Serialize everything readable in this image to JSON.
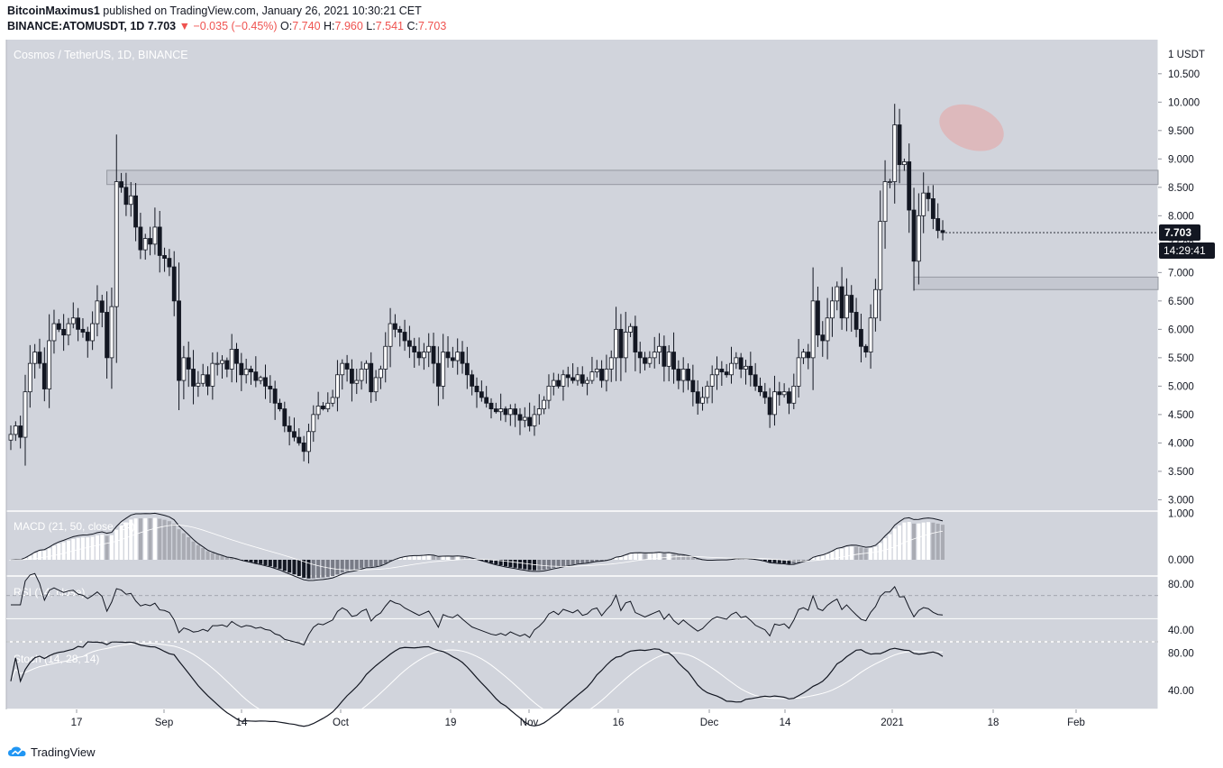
{
  "header": {
    "author": "BitcoinMaximus1",
    "published": "published on TradingView.com, January 26, 2021 10:30:21 CET",
    "symbol": "BINANCE:ATOMUSDT, 1D",
    "last": "7.703",
    "arrow": "▼",
    "change": "−0.035 (−0.45%)",
    "o_label": "O:",
    "o": "7.740",
    "h_label": "H:",
    "h": "7.960",
    "l_label": "L:",
    "l": "7.541",
    "c_label": "C:",
    "c": "7.703"
  },
  "footer": {
    "brand": "TradingView"
  },
  "colors": {
    "chart_bg": "#d1d4dc",
    "candle_up": "#ffffff",
    "candle_down": "#131722",
    "box": "#9598a1",
    "highlight": "#e8a2a2",
    "price_tag": "#131722"
  },
  "chart_data": [
    {
      "type": "candlestick",
      "title": "Cosmos / TetherUS, 1D, BINANCE",
      "currency_label": "1 USDT",
      "ylim": [
        2.8,
        11.1
      ],
      "y_ticks": [
        "10.500",
        "10.000",
        "9.500",
        "9.000",
        "8.500",
        "8.000",
        "7.500",
        "7.000",
        "6.500",
        "6.000",
        "5.500",
        "5.000",
        "4.500",
        "4.000",
        "3.500",
        "3.000"
      ],
      "x_ticks": [
        "17",
        "Sep",
        "14",
        "Oct",
        "19",
        "Nov",
        "16",
        "Dec",
        "14",
        "2021",
        "18",
        "Feb"
      ],
      "last_price": "7.703",
      "countdown": "14:29:41",
      "resistance_zone": [
        8.55,
        8.8
      ],
      "support_zone": [
        6.7,
        6.92
      ],
      "closes": [
        4.15,
        4.3,
        4.1,
        4.9,
        5.4,
        5.6,
        5.4,
        4.95,
        5.8,
        6.1,
        6.0,
        5.9,
        6.1,
        6.2,
        6.0,
        5.95,
        5.8,
        6.1,
        6.5,
        6.3,
        5.5,
        6.4,
        8.6,
        8.5,
        8.2,
        8.35,
        7.8,
        7.4,
        7.6,
        7.5,
        7.8,
        7.3,
        7.25,
        7.1,
        6.5,
        5.1,
        5.5,
        5.3,
        5.0,
        5.05,
        5.2,
        5.0,
        5.4,
        5.4,
        5.45,
        5.3,
        5.65,
        5.4,
        5.2,
        5.3,
        5.25,
        5.1,
        5.15,
        5.0,
        4.95,
        4.7,
        4.6,
        4.3,
        4.2,
        4.1,
        4.0,
        3.85,
        4.2,
        4.5,
        4.65,
        4.6,
        4.7,
        4.8,
        5.2,
        5.4,
        5.3,
        5.05,
        5.1,
        5.3,
        5.4,
        4.9,
        5.15,
        5.3,
        5.7,
        6.1,
        6.0,
        5.95,
        5.8,
        5.7,
        5.6,
        5.5,
        5.6,
        5.7,
        5.4,
        5.0,
        5.6,
        5.5,
        5.45,
        5.6,
        5.4,
        5.2,
        5.0,
        4.9,
        4.8,
        4.7,
        4.6,
        4.55,
        4.6,
        4.5,
        4.6,
        4.5,
        4.4,
        4.45,
        4.3,
        4.5,
        4.6,
        4.75,
        5.0,
        5.1,
        5.0,
        5.2,
        5.15,
        5.1,
        5.2,
        5.05,
        5.1,
        5.25,
        5.3,
        5.1,
        5.3,
        5.5,
        6.0,
        5.5,
        5.95,
        6.05,
        5.6,
        5.5,
        5.4,
        5.5,
        5.6,
        5.7,
        5.35,
        5.6,
        5.3,
        5.1,
        5.3,
        5.1,
        4.9,
        4.7,
        4.8,
        5.0,
        5.2,
        5.3,
        5.25,
        5.2,
        5.4,
        5.5,
        5.3,
        5.35,
        5.2,
        5.0,
        4.9,
        4.8,
        4.5,
        4.9,
        4.85,
        4.9,
        4.7,
        5.0,
        5.5,
        5.6,
        5.5,
        6.5,
        5.9,
        5.8,
        6.2,
        6.5,
        6.75,
        6.2,
        6.6,
        6.3,
        6.0,
        5.7,
        5.6,
        6.2,
        6.7,
        7.9,
        8.6,
        8.6,
        9.6,
        8.9,
        8.95,
        8.1,
        7.2,
        8.0,
        8.4,
        8.3,
        7.95,
        7.74,
        7.703
      ]
    },
    {
      "type": "macd",
      "label": "MACD (21, 50, close, 24)",
      "ylim": [
        -0.35,
        1.05
      ],
      "y_ticks": [
        "1.000",
        "0.000"
      ]
    },
    {
      "type": "rsi",
      "label": "RSI (14, close)",
      "ylim": [
        30,
        87
      ],
      "y_ticks": [
        "80.00",
        "40.00"
      ]
    },
    {
      "type": "stoch",
      "label": "Stoch (14, 28, 14)",
      "ylim": [
        20,
        92
      ],
      "y_ticks": [
        "80.00",
        "40.00"
      ]
    }
  ]
}
